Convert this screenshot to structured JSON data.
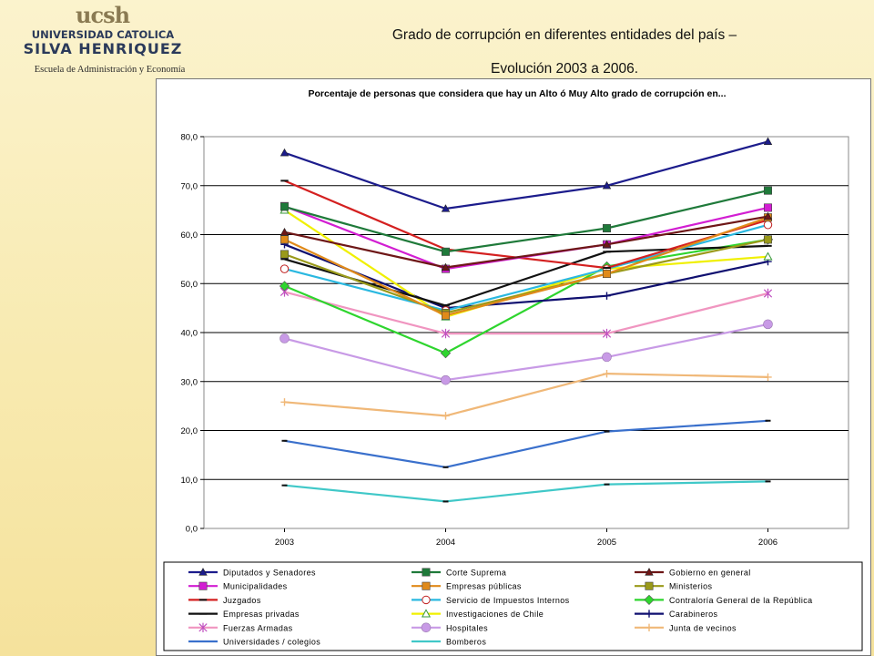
{
  "header": {
    "logo_mark": "ucsh",
    "logo_line1": "UNIVERSIDAD CATOLICA",
    "logo_line2": "SILVA HENRIQUEZ",
    "logo_line3": "Escuela de Administración y Economía",
    "title_line1": "Grado de corrupción en diferentes entidades del país –",
    "title_line2": "Evolución 2003 a 2006."
  },
  "chart_data": {
    "type": "line",
    "title": "Porcentaje de personas que considera que hay un Alto ó Muy Alto grado de corrupción en...",
    "xlabel": "",
    "ylabel": "",
    "x": [
      "2003",
      "2004",
      "2005",
      "2006"
    ],
    "ylim": [
      0,
      80
    ],
    "yticks": [
      "0,0",
      "10,0",
      "20,0",
      "30,0",
      "40,0",
      "50,0",
      "60,0",
      "70,0",
      "80,0"
    ],
    "grid": true,
    "legend_position": "bottom",
    "series": [
      {
        "name": "Diputados y Senadores",
        "values": [
          76.7,
          65.3,
          70.0,
          79.0
        ],
        "color": "#1c1c8c",
        "marker": "triangle"
      },
      {
        "name": "Corte Suprema",
        "values": [
          65.7,
          56.5,
          61.3,
          69.0
        ],
        "color": "#1f7a3a",
        "marker": "square"
      },
      {
        "name": "Gobierno en general",
        "values": [
          60.5,
          53.3,
          58.0,
          63.7
        ],
        "color": "#6e1717",
        "marker": "triangle"
      },
      {
        "name": "Municipalidades",
        "values": [
          65.8,
          53.0,
          58.0,
          65.5
        ],
        "color": "#d21ed2",
        "marker": "square"
      },
      {
        "name": "Empresas públicas",
        "values": [
          59.0,
          43.5,
          52.0,
          63.5
        ],
        "color": "#e08a1a",
        "marker": "square"
      },
      {
        "name": "Ministerios",
        "values": [
          56.0,
          44.0,
          52.0,
          59.0
        ],
        "color": "#9a9a1a",
        "marker": "square"
      },
      {
        "name": "Juzgados",
        "values": [
          71.0,
          57.0,
          53.2,
          63.0
        ],
        "color": "#d42020",
        "marker": "dash"
      },
      {
        "name": "Servicio de Impuestos Internos",
        "values": [
          53.0,
          44.5,
          53.0,
          62.0
        ],
        "color": "#2ab8e0",
        "marker": "circle-open"
      },
      {
        "name": "Empresas privadas",
        "values": [
          55.0,
          45.5,
          56.5,
          57.7
        ],
        "color": "#111111",
        "marker": "dash"
      },
      {
        "name": "Investigaciones de Chile",
        "values": [
          65.0,
          43.2,
          53.0,
          55.5
        ],
        "color": "#f0f000",
        "marker": "triangle-open"
      },
      {
        "name": "Carabineros",
        "values": [
          58.0,
          45.0,
          47.5,
          54.5
        ],
        "color": "#101070",
        "marker": "plus"
      },
      {
        "name": "Contraloría General de la República",
        "values": [
          49.5,
          35.8,
          53.5,
          59.0
        ],
        "color": "#2ed52e",
        "marker": "diamond"
      },
      {
        "name": "Fuerzas Armadas",
        "values": [
          48.3,
          39.8,
          39.8,
          48.0
        ],
        "color": "#f095c0",
        "marker": "asterisk"
      },
      {
        "name": "Hospitales",
        "values": [
          38.8,
          30.3,
          35.0,
          41.7
        ],
        "color": "#c89ae6",
        "marker": "circle"
      },
      {
        "name": "Junta de vecinos",
        "values": [
          25.8,
          23.0,
          31.6,
          30.9
        ],
        "color": "#f0b878",
        "marker": "plus"
      },
      {
        "name": "Universidades / colegios",
        "values": [
          17.9,
          12.5,
          19.8,
          22.0
        ],
        "color": "#3a70cc",
        "marker": "none"
      },
      {
        "name": "Bomberos",
        "values": [
          8.8,
          5.5,
          9.0,
          9.6
        ],
        "color": "#40c8c8",
        "marker": "none"
      }
    ],
    "legend_order": [
      "Diputados y Senadores",
      "Corte Suprema",
      "Gobierno en general",
      "Municipalidades",
      "Empresas públicas",
      "Ministerios",
      "Juzgados",
      "Servicio de Impuestos Internos",
      "Contraloría General de la República",
      "Empresas privadas",
      "Investigaciones de Chile",
      "Carabineros",
      "Fuerzas Armadas",
      "Hospitales",
      "Junta de vecinos",
      "Universidades / colegios",
      "Bomberos"
    ]
  }
}
